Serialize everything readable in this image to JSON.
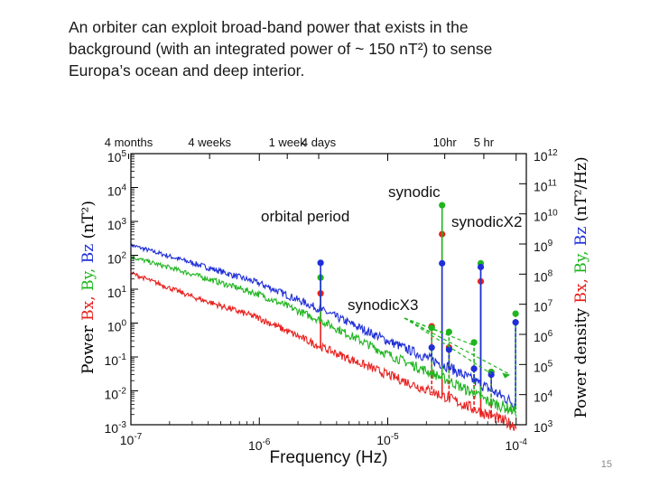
{
  "slide": {
    "text_lines": [
      "An orbiter can exploit broad-band power that exists in the",
      "background (with an integrated power of ~ 150 nT²) to sense",
      "Europa’s ocean and deep interior."
    ],
    "page_number": "15"
  },
  "colors": {
    "Bx": "#e8211e",
    "By": "#1fb51f",
    "Bz": "#1f2fd8",
    "axis": "#000000"
  },
  "chart_data": {
    "type": "line",
    "xscale": "log",
    "yscale": "log",
    "xlabel": "Frequency (Hz)",
    "ylabel_left": {
      "prefix": "Power",
      "Bx": "Bx,",
      "By": "By,",
      "Bz": "Bz",
      "unit": "(nT²)"
    },
    "ylabel_right": {
      "prefix": "Power density",
      "Bx": "Bx,",
      "By": "By,",
      "Bz": "Bz",
      "unit": "(nT²/Hz)"
    },
    "xlim": [
      1e-07,
      0.00012
    ],
    "ylim_left": [
      0.001,
      100000.0
    ],
    "ylim_right": [
      1000.0,
      1000000000000.0
    ],
    "x_ticks": [
      {
        "value": 1e-07,
        "label": "10",
        "exp": "-7"
      },
      {
        "value": 1e-06,
        "label": "10",
        "exp": "-6"
      },
      {
        "value": 1e-05,
        "label": "10",
        "exp": "-5"
      },
      {
        "value": 0.0001,
        "label": "10",
        "exp": "-4"
      }
    ],
    "y_left_ticks": [
      {
        "value": 100000.0,
        "label": "10",
        "exp": "5"
      },
      {
        "value": 10000.0,
        "label": "10",
        "exp": "4"
      },
      {
        "value": 1000.0,
        "label": "10",
        "exp": "3"
      },
      {
        "value": 100.0,
        "label": "10",
        "exp": "2"
      },
      {
        "value": 10.0,
        "label": "10",
        "exp": "1"
      },
      {
        "value": 1.0,
        "label": "10",
        "exp": "0"
      },
      {
        "value": 0.1,
        "label": "10",
        "exp": "-1"
      },
      {
        "value": 0.01,
        "label": "10",
        "exp": "-2"
      },
      {
        "value": 0.001,
        "label": "10",
        "exp": "-3"
      }
    ],
    "y_right_ticks": [
      {
        "value": 1000000000000.0,
        "label": "10",
        "exp": "12"
      },
      {
        "value": 100000000000.0,
        "label": "10",
        "exp": "11"
      },
      {
        "value": 10000000000.0,
        "label": "10",
        "exp": "10"
      },
      {
        "value": 1000000000.0,
        "label": "10",
        "exp": "9"
      },
      {
        "value": 100000000.0,
        "label": "10",
        "exp": "8"
      },
      {
        "value": 10000000.0,
        "label": "10",
        "exp": "7"
      },
      {
        "value": 1000000.0,
        "label": "10",
        "exp": "6"
      },
      {
        "value": 100000.0,
        "label": "10",
        "exp": "5"
      },
      {
        "value": 10000.0,
        "label": "10",
        "exp": "4"
      },
      {
        "value": 1000.0,
        "label": "10",
        "exp": "3"
      }
    ],
    "period_labels": [
      {
        "text": "4 months",
        "freq": 9.6e-08
      },
      {
        "text": "4 weeks",
        "freq": 4.1e-07
      },
      {
        "text": "1 week",
        "freq": 1.65e-06
      },
      {
        "text": "4 days",
        "freq": 2.9e-06
      },
      {
        "text": "10hr",
        "freq": 2.78e-05
      },
      {
        "text": "5 hr",
        "freq": 5.6e-05
      }
    ],
    "series": [
      {
        "name": "Bz",
        "color_key": "Bz",
        "points": [
          [
            1e-07,
            200
          ],
          [
            3e-07,
            60
          ],
          [
            1e-06,
            15
          ],
          [
            3e-06,
            2.5
          ],
          [
            1e-05,
            0.3
          ],
          [
            3e-05,
            0.05
          ],
          [
            6e-05,
            0.012
          ],
          [
            0.0001,
            0.004
          ]
        ]
      },
      {
        "name": "By",
        "color_key": "By",
        "points": [
          [
            1e-07,
            90
          ],
          [
            3e-07,
            28
          ],
          [
            1e-06,
            7
          ],
          [
            3e-06,
            1.2
          ],
          [
            1e-05,
            0.12
          ],
          [
            3e-05,
            0.02
          ],
          [
            6e-05,
            0.005
          ],
          [
            0.0001,
            0.0025
          ]
        ]
      },
      {
        "name": "Bx",
        "color_key": "Bx",
        "points": [
          [
            1e-07,
            30
          ],
          [
            3e-07,
            6
          ],
          [
            1e-06,
            1.4
          ],
          [
            3e-06,
            0.2
          ],
          [
            1e-05,
            0.03
          ],
          [
            3e-05,
            0.006
          ],
          [
            6e-05,
            0.002
          ],
          [
            0.0001,
            0.0009
          ]
        ]
      }
    ],
    "peaks": [
      {
        "group": "orbital",
        "freq": 3e-06,
        "Bz": 60,
        "By": 22,
        "Bx": 7.5
      },
      {
        "group": "synodic",
        "freq": 2.65e-05,
        "By": 3000,
        "Bx": 420,
        "Bz": 58
      },
      {
        "group": "synodicX2",
        "freq": 5.3e-05,
        "By": 58,
        "Bz": 45,
        "Bx": 17
      },
      {
        "group": "synodicX3",
        "freq": 2.2e-05,
        "Bx": 0.8,
        "By": 0.72,
        "Bz": 0.19
      },
      {
        "group": "synodicX3",
        "freq": 3e-05,
        "By": 0.55,
        "Bx": 0.19,
        "Bz": 0.165
      },
      {
        "group": "synodicX3",
        "freq": 4.7e-05,
        "By": 0.27,
        "Bz": 0.045,
        "Bx": 0.045
      },
      {
        "group": "synodicX3",
        "freq": 6.4e-05,
        "By": 0.036,
        "Bx": 0.036,
        "Bz": 0.03
      },
      {
        "group": "synodicX3",
        "freq": 9.9e-05,
        "By": 1.9,
        "Bz": 1.05
      }
    ],
    "annotations": {
      "synodic": "synodic",
      "orbital_period": "orbital period",
      "synodicX2": "synodicX2",
      "synodicX3": "synodicX3"
    }
  }
}
